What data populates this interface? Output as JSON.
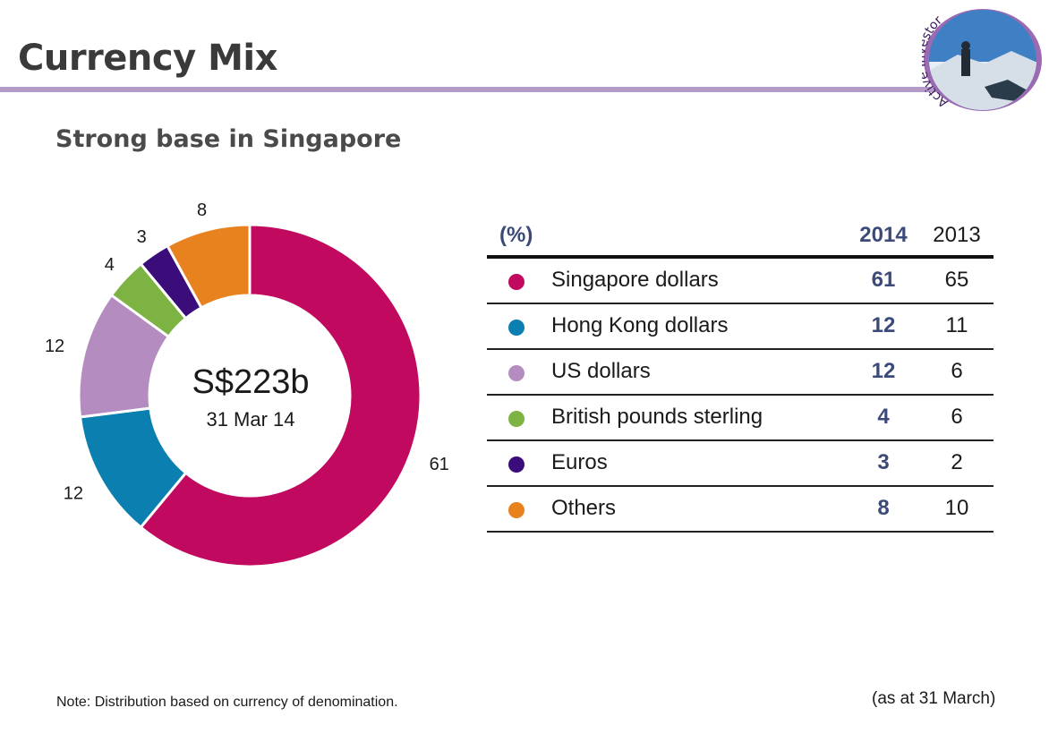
{
  "header": {
    "title": "Currency Mix",
    "logo_text": "Active Investor"
  },
  "subtitle": "Strong base in Singapore",
  "chart_data": {
    "type": "pie",
    "style": "donut",
    "center_value": "S$223b",
    "center_date": "31 Mar 14",
    "slices": [
      {
        "name": "Singapore dollars",
        "value": 61,
        "color": "#c0095f"
      },
      {
        "name": "Hong Kong dollars",
        "value": 12,
        "color": "#0a7fb0"
      },
      {
        "name": "US dollars",
        "value": 12,
        "color": "#b58cc0"
      },
      {
        "name": "British pounds sterling",
        "value": 4,
        "color": "#7cb343"
      },
      {
        "name": "Euros",
        "value": 3,
        "color": "#3a0d7a"
      },
      {
        "name": "Others",
        "value": 8,
        "color": "#e8821e"
      }
    ]
  },
  "table": {
    "unit_header": "(%)",
    "year_2014": "2014",
    "year_2013": "2013",
    "rows": [
      {
        "label": "Singapore dollars",
        "v2014": "61",
        "v2013": "65",
        "color": "#c0095f"
      },
      {
        "label": "Hong Kong dollars",
        "v2014": "12",
        "v2013": "11",
        "color": "#0a7fb0"
      },
      {
        "label": "US dollars",
        "v2014": "12",
        "v2013": "6",
        "color": "#b58cc0"
      },
      {
        "label": "British pounds sterling",
        "v2014": "4",
        "v2013": "6",
        "color": "#7cb343"
      },
      {
        "label": "Euros",
        "v2014": "3",
        "v2013": "2",
        "color": "#3a0d7a"
      },
      {
        "label": "Others",
        "v2014": "8",
        "v2013": "10",
        "color": "#e8821e"
      }
    ]
  },
  "footer": {
    "note": "Note: Distribution based on currency of denomination.",
    "as_at": "(as at 31 March)"
  }
}
